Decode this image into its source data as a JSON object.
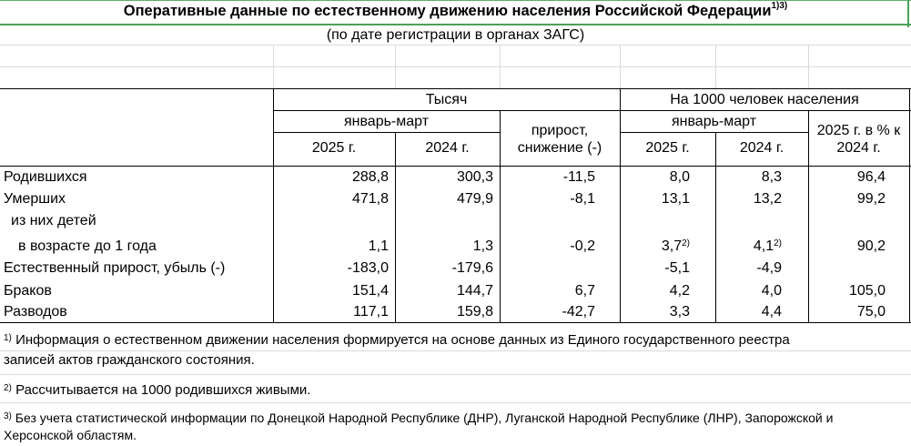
{
  "title": "Оперативные данные по естественному движению населения Российской Федерации",
  "title_footnote_marks": "1)3)",
  "subtitle": "(по дате регистрации в органах ЗАГС)",
  "header": {
    "thousands": "Тысяч",
    "per_1000": "На 1000 человек населения",
    "jan_mar_1": "январь-март",
    "jan_mar_2": "январь-март",
    "year_2025_1": "2025 г.",
    "year_2024_1": "2024 г.",
    "growth_line1": "прирост,",
    "growth_line2": "снижение (-)",
    "year_2025_2": "2025 г.",
    "year_2024_2": "2024 г.",
    "pct_line1": "2025 г. в % к",
    "pct_line2": "2024 г."
  },
  "rows": [
    {
      "label": "Родившихся",
      "th2025": "288,8",
      "th2024": "300,3",
      "growth": "-11,5",
      "r2025": "8,0",
      "r2024": "8,3",
      "pct": "96,4"
    },
    {
      "label": "Умерших",
      "th2025": "471,8",
      "th2024": "479,9",
      "growth": "-8,1",
      "r2025": "13,1",
      "r2024": "13,2",
      "pct": "99,2"
    },
    {
      "label": "из них детей",
      "label2": "в возрасте до 1 года",
      "th2025": "1,1",
      "th2024": "1,3",
      "growth": "-0,2",
      "r2025": "3,7",
      "r2025_mark": "2)",
      "r2024": "4,1",
      "r2024_mark": "2)",
      "pct": "90,2"
    },
    {
      "label": "Естественный прирост, убыль (-)",
      "th2025": "-183,0",
      "th2024": "-179,6",
      "growth": "",
      "r2025": "-5,1",
      "r2024": "-4,9",
      "pct": ""
    },
    {
      "label": "Браков",
      "th2025": "151,4",
      "th2024": "144,7",
      "growth": "6,7",
      "r2025": "4,2",
      "r2024": "4,0",
      "pct": "105,0"
    },
    {
      "label": "Разводов",
      "th2025": "117,1",
      "th2024": "159,8",
      "growth": "-42,7",
      "r2025": "3,3",
      "r2024": "4,4",
      "pct": "75,0"
    }
  ],
  "footnotes": {
    "n1_mark": "1)",
    "n1_line1": "Информация о естественном движении населения формируется на основе данных из Единого государственного реестра",
    "n1_line2": "записей актов гражданского состояния.",
    "n2_mark": "2)",
    "n2_text": "Рассчитывается на 1000 родившихся живыми.",
    "n3_mark": "3)",
    "n3_line1": "Без учета статистической информации по Донецкой Народной Республике (ДНР), Луганской Народной Республике (ЛНР), Запорожской и",
    "n3_line2": "Херсонской областям."
  },
  "colors": {
    "gridline": "#dadada",
    "selection_border": "#4aa257",
    "text": "#000000"
  }
}
